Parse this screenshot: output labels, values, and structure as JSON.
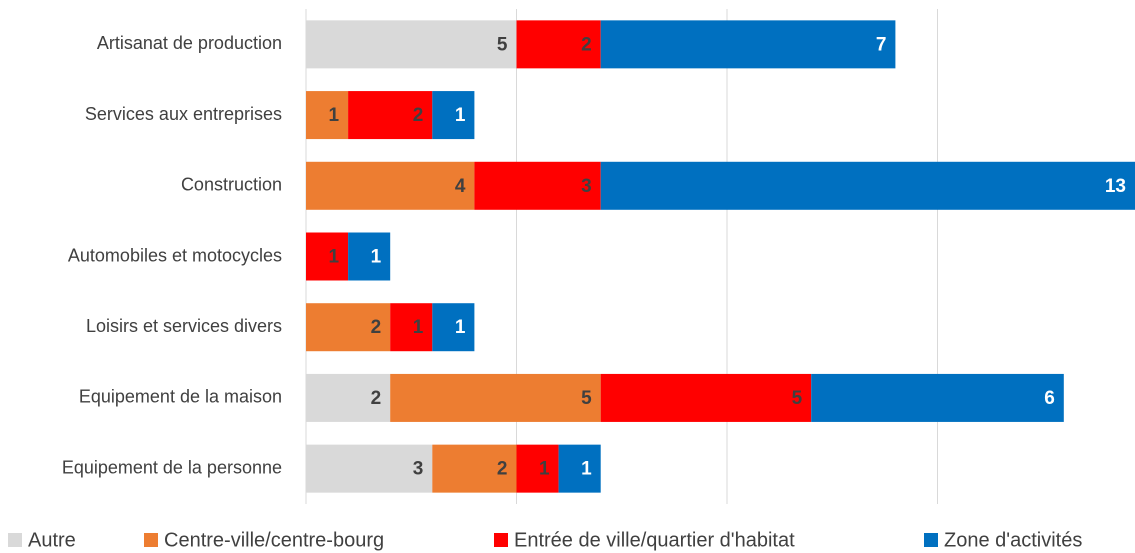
{
  "chart_data": {
    "type": "stacked_barh",
    "categories": [
      "Artisanat de production",
      "Services aux entreprises",
      "Construction",
      "Automobiles et motocycles",
      "Loisirs et services divers",
      "Equipement de la maison",
      "Equipement de la personne"
    ],
    "series": [
      {
        "name": "Autre",
        "color": "#d9d9d9",
        "label_color": "#404040",
        "values": [
          5,
          null,
          null,
          null,
          null,
          2,
          3
        ]
      },
      {
        "name": "Centre-ville/centre-bourg",
        "color": "#ed7d31",
        "label_color": "#404040",
        "values": [
          null,
          1,
          4,
          null,
          2,
          5,
          2
        ]
      },
      {
        "name": "Entrée de ville/quartier d'habitat",
        "color": "#ff0000",
        "label_color": "#404040",
        "values": [
          2,
          2,
          3,
          1,
          1,
          5,
          1
        ]
      },
      {
        "name": "Zone d'activités",
        "color": "#0070c0",
        "label_color": "#ffffff",
        "values": [
          7,
          1,
          13,
          1,
          1,
          6,
          1
        ]
      }
    ],
    "xlim": [
      0,
      20
    ],
    "xticks": [
      0,
      5,
      10,
      15
    ],
    "grid": true,
    "legend": "bottom"
  }
}
